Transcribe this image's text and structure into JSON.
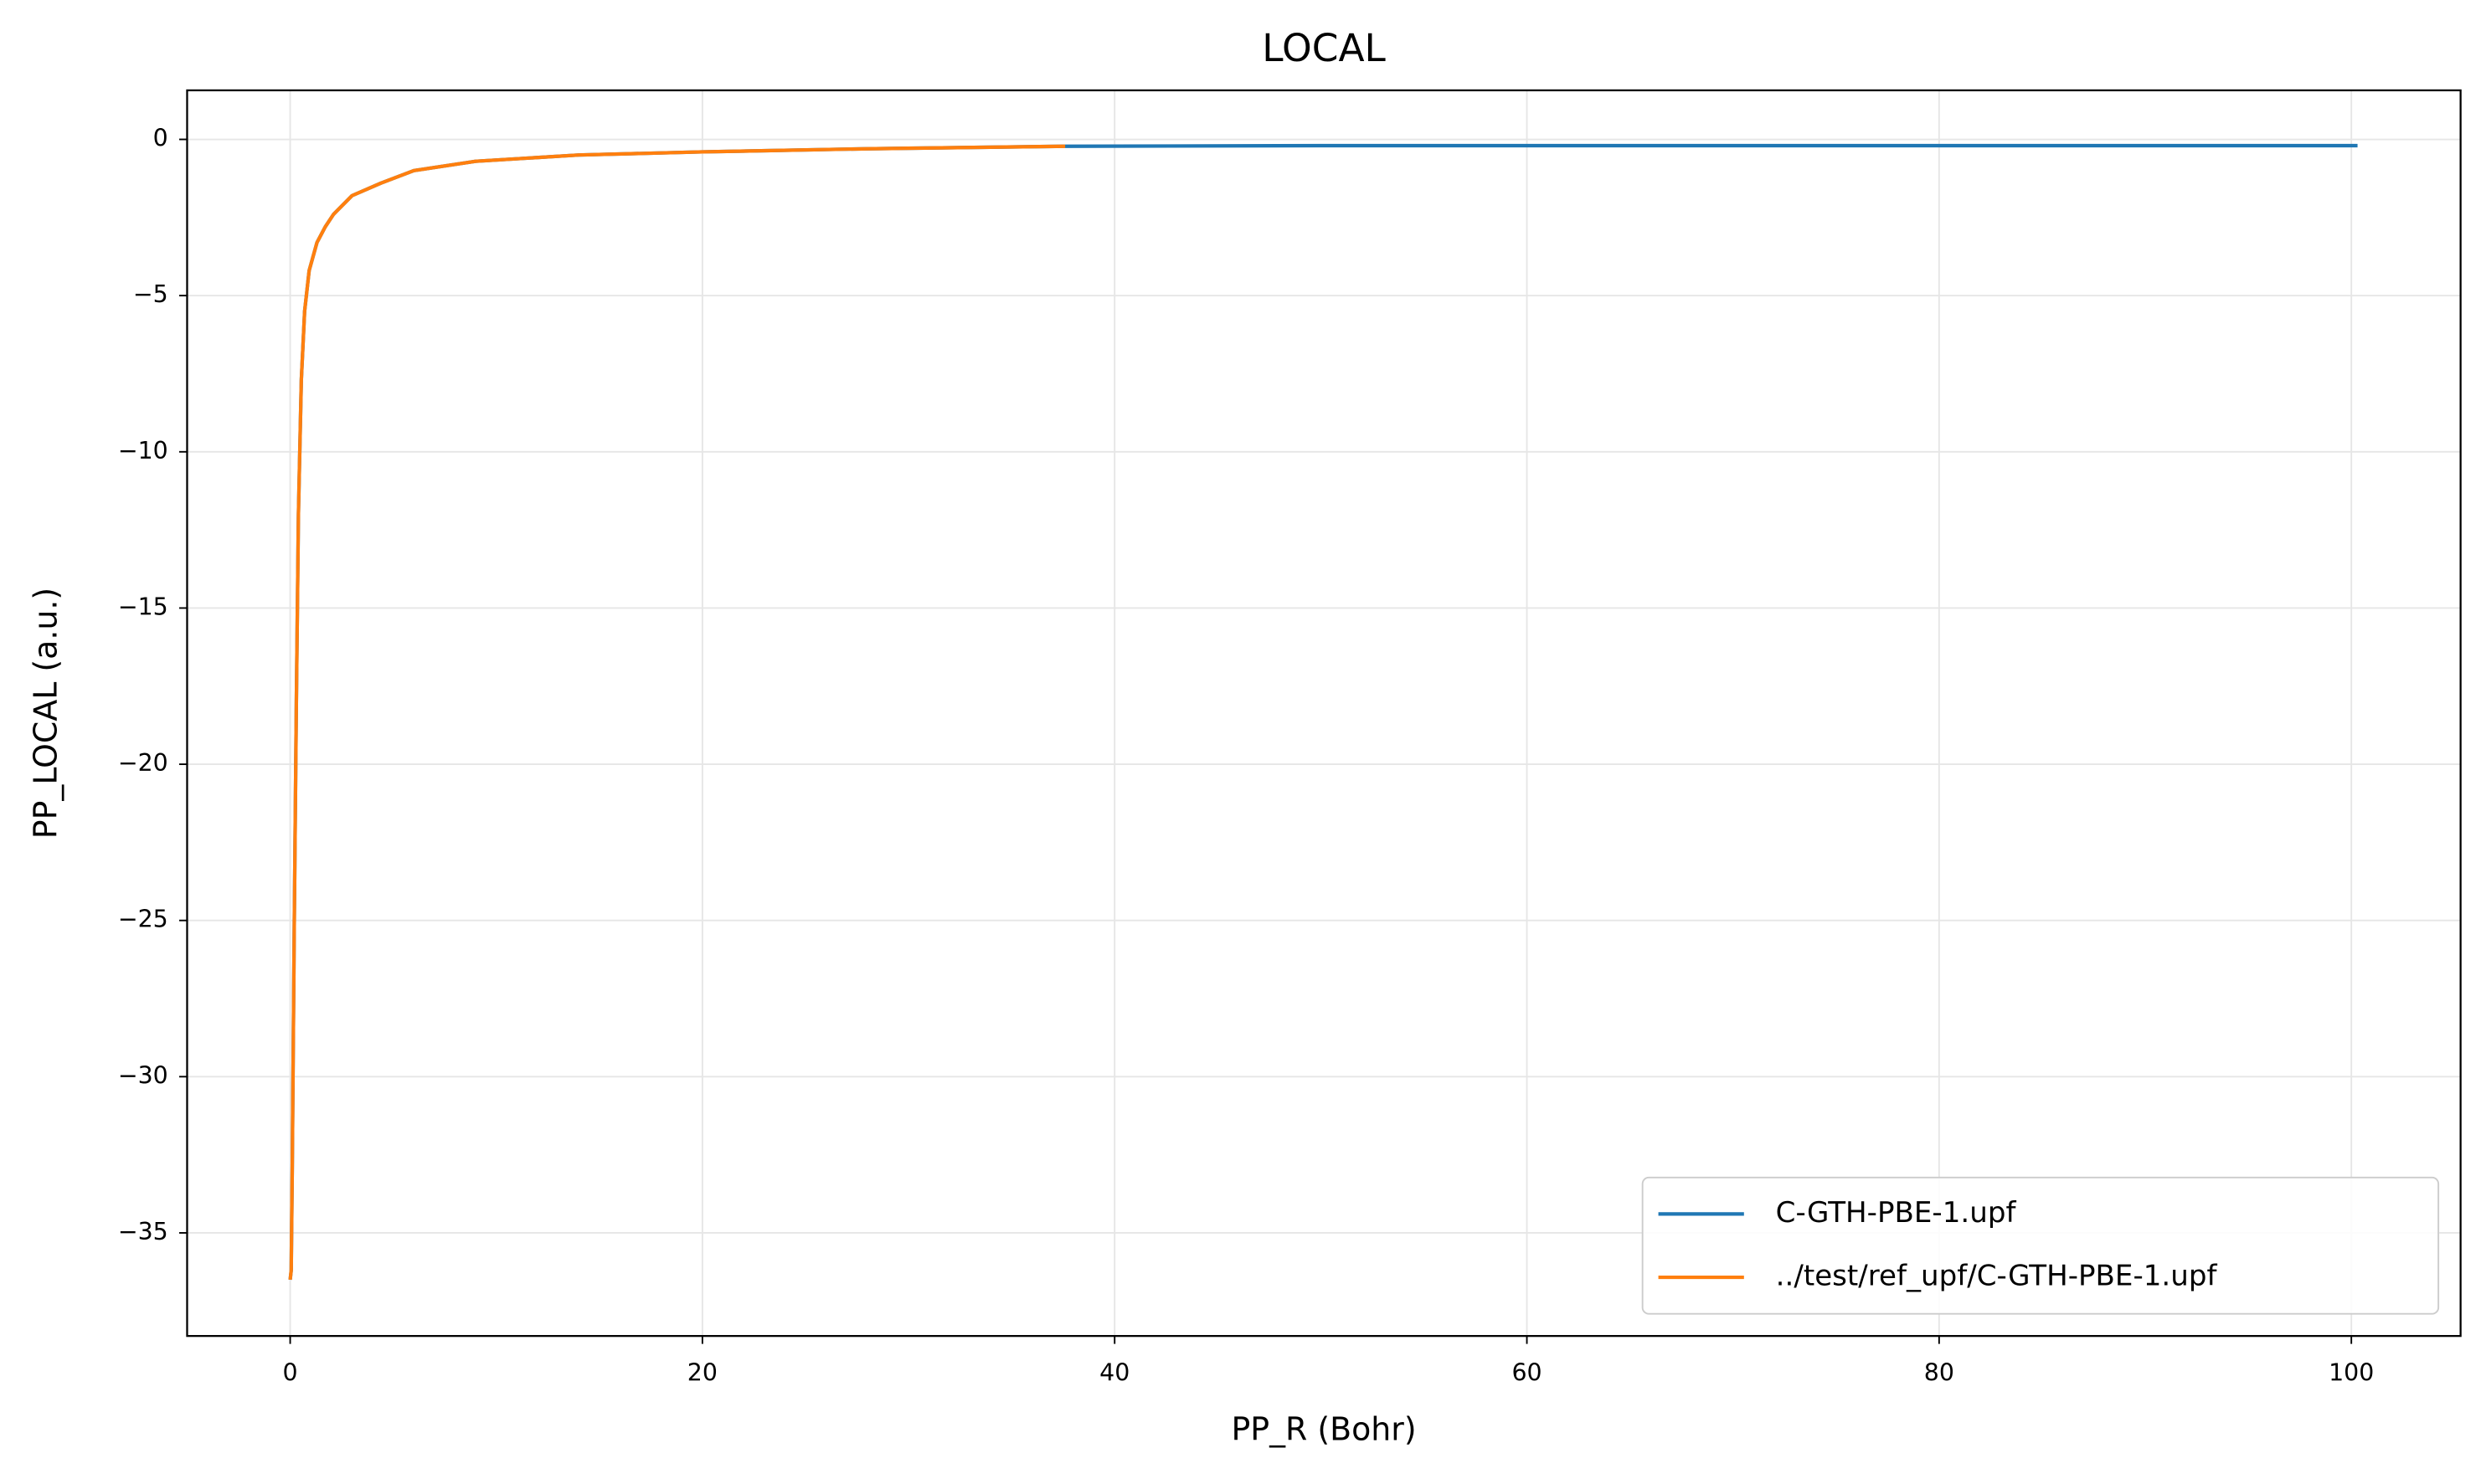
{
  "chart_data": {
    "type": "line",
    "title": "LOCAL",
    "x_label": "PP_R (Bohr)",
    "y_label": "PP_LOCAL (a.u.)",
    "xlim": [
      -5,
      105.3
    ],
    "ylim": [
      -38.3,
      1.57
    ],
    "xticks": [
      0,
      20,
      40,
      60,
      80,
      100
    ],
    "yticks": [
      {
        "value": -35,
        "label": "−35"
      },
      {
        "value": -30,
        "label": "−30"
      },
      {
        "value": -25,
        "label": "−25"
      },
      {
        "value": -20,
        "label": "−20"
      },
      {
        "value": -15,
        "label": "−15"
      },
      {
        "value": -10,
        "label": "−10"
      },
      {
        "value": -5,
        "label": "−5"
      },
      0
    ],
    "grid": true,
    "legend": "lower right",
    "series": [
      {
        "name": "C-GTH-PBE-1.upf",
        "color": "#1f77b4",
        "x": [
          0,
          0.05,
          0.1,
          0.2,
          0.3,
          0.4,
          0.54,
          0.7,
          0.92,
          1.3,
          1.7,
          2.1,
          3,
          4.4,
          6,
          9,
          14,
          20,
          28,
          37.6,
          50,
          70,
          100.3
        ],
        "values": [
          -36.5,
          -36.2,
          -33,
          -25,
          -18,
          -12,
          -7.7,
          -5.5,
          -4.2,
          -3.3,
          -2.8,
          -2.4,
          -1.8,
          -1.4,
          -1.0,
          -0.7,
          -0.5,
          -0.4,
          -0.3,
          -0.22,
          -0.2,
          -0.2,
          -0.2
        ]
      },
      {
        "name": "../test/ref_upf/C-GTH-PBE-1.upf",
        "color": "#ff7f0e",
        "x": [
          0,
          0.05,
          0.1,
          0.2,
          0.3,
          0.4,
          0.54,
          0.7,
          0.92,
          1.3,
          1.7,
          2.1,
          3,
          4.4,
          6,
          9,
          14,
          20,
          28,
          37.6
        ],
        "values": [
          -36.5,
          -36.2,
          -33,
          -25,
          -18,
          -12,
          -7.7,
          -5.5,
          -4.2,
          -3.3,
          -2.8,
          -2.4,
          -1.8,
          -1.4,
          -1.0,
          -0.7,
          -0.5,
          -0.4,
          -0.3,
          -0.22
        ]
      }
    ]
  }
}
